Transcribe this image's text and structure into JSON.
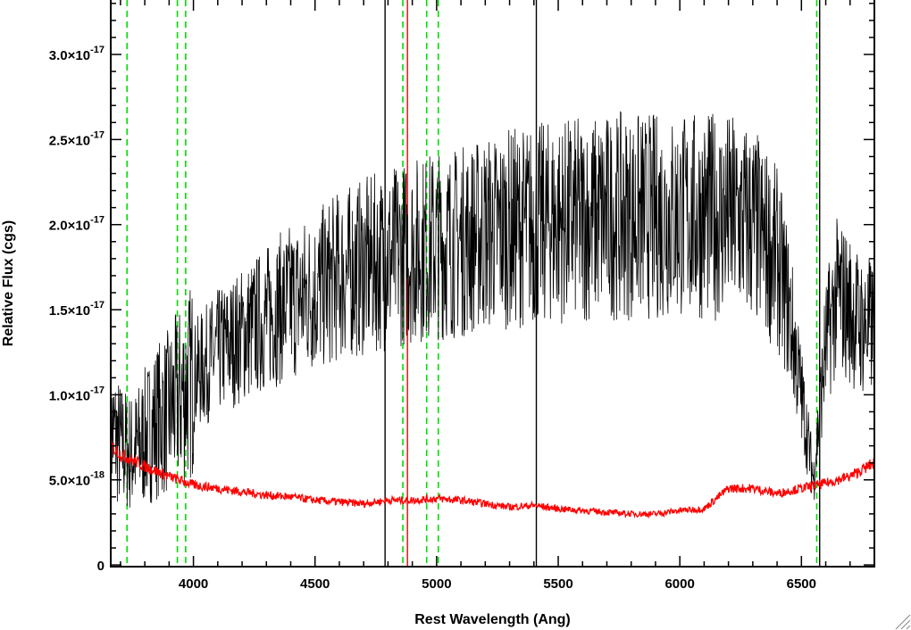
{
  "chart_data": {
    "type": "line",
    "title": "",
    "xlabel": "Rest Wavelength (Ang)",
    "ylabel": "Relative Flux (cgs)",
    "xlim": [
      3660,
      6800
    ],
    "ylim": [
      -1e-19,
      3.32e-17
    ],
    "x_ticks": [
      {
        "value": 4000,
        "label": "4000"
      },
      {
        "value": 4500,
        "label": "4500"
      },
      {
        "value": 5000,
        "label": "5000"
      },
      {
        "value": 5500,
        "label": "5500"
      },
      {
        "value": 6000,
        "label": "6000"
      },
      {
        "value": 6500,
        "label": "6500"
      }
    ],
    "y_ticks": [
      {
        "value": 0,
        "mant": "0",
        "exp": ""
      },
      {
        "value": 5e-18,
        "mant": "5.0×10",
        "exp": "-18"
      },
      {
        "value": 1e-17,
        "mant": "1.0×10",
        "exp": "-17"
      },
      {
        "value": 1.5e-17,
        "mant": "1.5×10",
        "exp": "-17"
      },
      {
        "value": 2e-17,
        "mant": "2.0×10",
        "exp": "-17"
      },
      {
        "value": 2.5e-17,
        "mant": "2.5×10",
        "exp": "-17"
      },
      {
        "value": 3e-17,
        "mant": "3.0×10",
        "exp": "-17"
      }
    ],
    "series": [
      {
        "color": "#000000",
        "style": "noisy-spectrum",
        "x": [
          3660,
          3700,
          3750,
          3800,
          3850,
          3900,
          3950,
          4000,
          4100,
          4200,
          4300,
          4400,
          4500,
          4600,
          4700,
          4800,
          4900,
          5000,
          5100,
          5200,
          5300,
          5400,
          5500,
          5600,
          5700,
          5800,
          5900,
          6000,
          6100,
          6200,
          6300,
          6400,
          6450,
          6500,
          6550,
          6600,
          6650,
          6700,
          6750,
          6800
        ],
        "values": [
          8e-18,
          7e-18,
          6.5e-18,
          7.5e-18,
          8.5e-18,
          9e-18,
          1e-17,
          1.1e-17,
          1.25e-17,
          1.35e-17,
          1.45e-17,
          1.55e-17,
          1.6e-17,
          1.7e-17,
          1.75e-17,
          1.8e-17,
          1.85e-17,
          1.88e-17,
          1.9e-17,
          1.95e-17,
          1.98e-17,
          2e-17,
          2.02e-17,
          2.03e-17,
          2.05e-17,
          2.05e-17,
          2.05e-17,
          2.05e-17,
          2.05e-17,
          2.05e-17,
          2e-17,
          1.8e-17,
          1.5e-17,
          1e-17,
          5e-18,
          1.3e-17,
          1.6e-17,
          1.5e-17,
          1.4e-17,
          1.4e-17
        ]
      },
      {
        "color": "#ff0000",
        "style": "error-spectrum",
        "x": [
          3660,
          3700,
          3800,
          3900,
          4000,
          4100,
          4200,
          4300,
          4400,
          4500,
          4600,
          4700,
          4800,
          4900,
          5000,
          5100,
          5200,
          5300,
          5400,
          5500,
          5600,
          5700,
          5800,
          5900,
          6000,
          6100,
          6200,
          6300,
          6400,
          6500,
          6600,
          6700,
          6800
        ],
        "values": [
          7e-18,
          6.5e-18,
          5.8e-18,
          5.2e-18,
          4.7e-18,
          4.5e-18,
          4.3e-18,
          4.1e-18,
          4e-18,
          3.8e-18,
          3.7e-18,
          3.6e-18,
          3.8e-18,
          3.8e-18,
          3.9e-18,
          3.8e-18,
          3.6e-18,
          3.4e-18,
          3.5e-18,
          3.3e-18,
          3.2e-18,
          3.1e-18,
          3e-18,
          3e-18,
          3.2e-18,
          3.3e-18,
          4.5e-18,
          4.5e-18,
          4.2e-18,
          4.5e-18,
          4.8e-18,
          5.2e-18,
          6e-18
        ]
      }
    ],
    "vertical_lines": [
      {
        "x": 3727,
        "color": "#00dd00",
        "dash": true
      },
      {
        "x": 3934,
        "color": "#00dd00",
        "dash": true
      },
      {
        "x": 3968,
        "color": "#00dd00",
        "dash": true
      },
      {
        "x": 4861,
        "color": "#00dd00",
        "dash": true
      },
      {
        "x": 4959,
        "color": "#00dd00",
        "dash": true
      },
      {
        "x": 5007,
        "color": "#00dd00",
        "dash": true
      },
      {
        "x": 6563,
        "color": "#00dd00",
        "dash": true
      },
      {
        "x": 4788,
        "color": "#000000",
        "dash": false
      },
      {
        "x": 5410,
        "color": "#000000",
        "dash": false
      },
      {
        "x": 6575,
        "color": "#000000",
        "dash": false
      },
      {
        "x": 4880,
        "color": "#ff0000",
        "dash": false
      }
    ],
    "grid": false,
    "legend": "none"
  }
}
